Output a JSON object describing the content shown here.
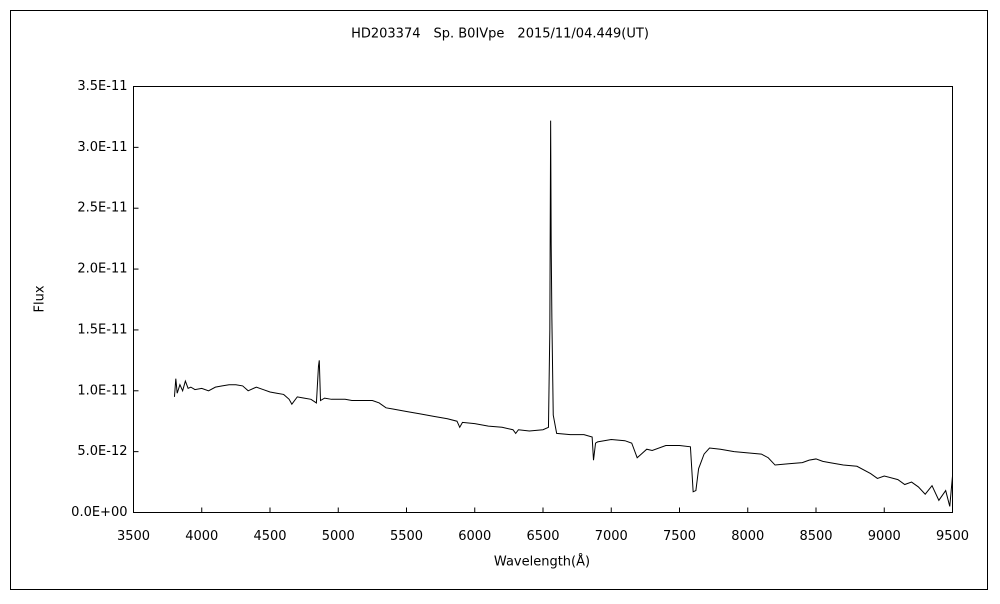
{
  "chart_data": {
    "type": "line",
    "title": "HD203374　Sp. B0IVpe　2015/11/04.449(UT)",
    "x_label": "Wavelength(Å)",
    "y_label": "Flux",
    "color": "#000000",
    "grid": false,
    "xlim": [
      3500,
      9500
    ],
    "ylim": [
      0,
      3.5e-11
    ],
    "xticks": [
      3500,
      4000,
      4500,
      5000,
      5500,
      6000,
      6500,
      7000,
      7500,
      8000,
      8500,
      9000,
      9500
    ],
    "yticks": [
      {
        "value": 0,
        "label": "0.0E+00"
      },
      {
        "value": 5e-12,
        "label": "5.0E-12"
      },
      {
        "value": 1e-11,
        "label": "1.0E-11"
      },
      {
        "value": 1.5e-11,
        "label": "1.5E-11"
      },
      {
        "value": 2e-11,
        "label": "2.0E-11"
      },
      {
        "value": 2.5e-11,
        "label": "2.5E-11"
      },
      {
        "value": 3e-11,
        "label": "3.0E-11"
      },
      {
        "value": 3.5e-11,
        "label": "3.5E-11"
      }
    ],
    "x": [
      3800,
      3810,
      3820,
      3840,
      3860,
      3880,
      3900,
      3920,
      3950,
      4000,
      4050,
      4100,
      4150,
      4200,
      4250,
      4300,
      4340,
      4400,
      4450,
      4500,
      4550,
      4600,
      4640,
      4660,
      4700,
      4750,
      4800,
      4840,
      4855,
      4861,
      4870,
      4900,
      4950,
      5000,
      5050,
      5100,
      5150,
      5200,
      5250,
      5300,
      5350,
      5400,
      5450,
      5500,
      5600,
      5700,
      5800,
      5870,
      5890,
      5910,
      6000,
      6100,
      6200,
      6280,
      6300,
      6320,
      6400,
      6500,
      6540,
      6550,
      6556,
      6560,
      6565,
      6575,
      6600,
      6700,
      6800,
      6860,
      6870,
      6885,
      6900,
      7000,
      7100,
      7150,
      7190,
      7220,
      7260,
      7300,
      7400,
      7500,
      7580,
      7600,
      7620,
      7640,
      7680,
      7720,
      7800,
      7900,
      8000,
      8100,
      8150,
      8200,
      8300,
      8400,
      8450,
      8500,
      8550,
      8600,
      8700,
      8800,
      8900,
      8950,
      9000,
      9100,
      9150,
      9200,
      9250,
      9300,
      9350,
      9400,
      9450,
      9480,
      9500
    ],
    "values": [
      9.5e-12,
      1.1e-11,
      9.8e-12,
      1.05e-11,
      1e-11,
      1.08e-11,
      1.02e-11,
      1.03e-11,
      1.01e-11,
      1.02e-11,
      1e-11,
      1.03e-11,
      1.04e-11,
      1.05e-11,
      1.05e-11,
      1.04e-11,
      1e-11,
      1.03e-11,
      1.01e-11,
      9.9e-12,
      9.8e-12,
      9.7e-12,
      9.3e-12,
      8.9e-12,
      9.5e-12,
      9.4e-12,
      9.3e-12,
      9e-12,
      1.2e-11,
      1.25e-11,
      9.2e-12,
      9.4e-12,
      9.3e-12,
      9.3e-12,
      9.3e-12,
      9.2e-12,
      9.2e-12,
      9.2e-12,
      9.2e-12,
      9e-12,
      8.6e-12,
      8.5e-12,
      8.4e-12,
      8.3e-12,
      8.1e-12,
      7.9e-12,
      7.7e-12,
      7.5e-12,
      7e-12,
      7.4e-12,
      7.3e-12,
      7.1e-12,
      7e-12,
      6.8e-12,
      6.5e-12,
      6.8e-12,
      6.7e-12,
      6.8e-12,
      7e-12,
      1.5e-11,
      3.22e-11,
      2.2e-11,
      1.6e-11,
      8e-12,
      6.5e-12,
      6.4e-12,
      6.4e-12,
      6.2e-12,
      4.3e-12,
      5.7e-12,
      5.8e-12,
      6e-12,
      5.9e-12,
      5.7e-12,
      4.5e-12,
      4.8e-12,
      5.2e-12,
      5.1e-12,
      5.5e-12,
      5.5e-12,
      5.4e-12,
      1.7e-12,
      1.8e-12,
      3.6e-12,
      4.8e-12,
      5.3e-12,
      5.2e-12,
      5e-12,
      4.9e-12,
      4.8e-12,
      4.5e-12,
      3.9e-12,
      4e-12,
      4.1e-12,
      4.3e-12,
      4.4e-12,
      4.2e-12,
      4.1e-12,
      3.9e-12,
      3.8e-12,
      3.2e-12,
      2.8e-12,
      3e-12,
      2.7e-12,
      2.3e-12,
      2.5e-12,
      2.1e-12,
      1.5e-12,
      2.2e-12,
      1e-12,
      1.8e-12,
      5e-13,
      3e-12
    ]
  }
}
